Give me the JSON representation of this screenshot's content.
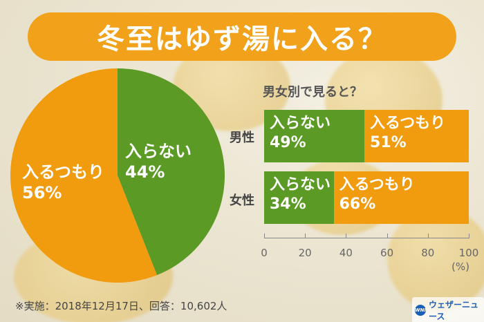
{
  "title": "冬至はゆず湯に入る？",
  "colors": {
    "enter": "#f19c0f",
    "not_enter": "#5b9a25",
    "title_band": "#f2a11a"
  },
  "chart_data": [
    {
      "type": "pie",
      "slices": [
        {
          "label": "入らない",
          "pct_text": "44%",
          "value": 44,
          "color": "#5b9a25"
        },
        {
          "label": "入るつもり",
          "pct_text": "56%",
          "value": 56,
          "color": "#f19c0f"
        }
      ]
    },
    {
      "type": "bar",
      "orientation": "horizontal",
      "stacked": true,
      "title": "男女別で見ると？",
      "categories": [
        "男性",
        "女性"
      ],
      "series": [
        {
          "name": "入らない",
          "values": [
            49,
            34
          ],
          "color": "#5b9a25",
          "labels": [
            "49%",
            "34%"
          ]
        },
        {
          "name": "入るつもり",
          "values": [
            51,
            66
          ],
          "color": "#f19c0f",
          "labels": [
            "51%",
            "66%"
          ]
        }
      ],
      "xticks": [
        "0",
        "20",
        "40",
        "60",
        "80",
        "100"
      ],
      "xlim": [
        0,
        100
      ],
      "unit": "(%)"
    }
  ],
  "footnote": "※実施：2018年12月17日、回答：10,602人",
  "logo": {
    "mark": "WNI",
    "text": "ウェザーニュース"
  }
}
